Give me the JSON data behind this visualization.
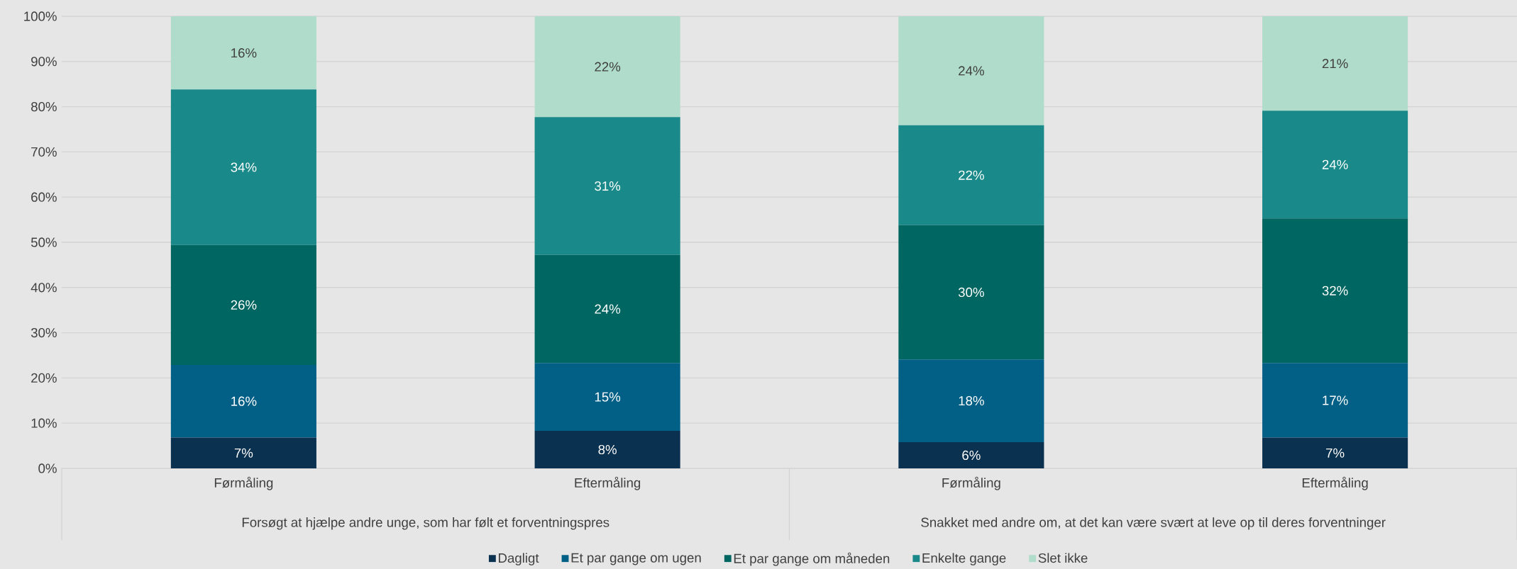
{
  "chart_data": {
    "type": "bar",
    "stacked": true,
    "categories": [
      "Førmåling",
      "Eftermåling",
      "Førmåling",
      "Eftermåling"
    ],
    "annotations": [
      "Forsøgt at hjælpe andre unge, som har følt et forventningspres",
      "Snakket med andre om, at det kan være svært at leve op til deres forventninger"
    ],
    "series": [
      {
        "name": "Dagligt",
        "color": "#0b3150",
        "values": [
          6.8,
          8.3,
          5.8,
          6.8
        ],
        "value_labels": [
          "7%",
          "8%",
          "6%",
          "7%"
        ]
      },
      {
        "name": "Et par gange om ugen",
        "color": "#025f85",
        "values": [
          16.1,
          15.0,
          18.3,
          16.5
        ],
        "value_labels": [
          "16%",
          "15%",
          "18%",
          "17%"
        ]
      },
      {
        "name": "Et par gange om måneden",
        "color": "#006661",
        "values": [
          26.5,
          23.9,
          29.7,
          32.0
        ],
        "value_labels": [
          "26%",
          "24%",
          "30%",
          "32%"
        ]
      },
      {
        "name": "Enkelte gange",
        "color": "#19898a",
        "values": [
          34.4,
          30.5,
          22.1,
          23.8
        ],
        "value_labels": [
          "34%",
          "31%",
          "22%",
          "24%"
        ]
      },
      {
        "name": "Slet ikke",
        "color": "#b0dccb",
        "values": [
          16.2,
          22.3,
          24.1,
          20.9
        ],
        "value_labels": [
          "16%",
          "22%",
          "24%",
          "21%"
        ]
      }
    ],
    "ylim": [
      0,
      100
    ],
    "yticks": [
      {
        "value": 0,
        "label": "0%"
      },
      {
        "value": 10,
        "label": "10%"
      },
      {
        "value": 20,
        "label": "20%"
      },
      {
        "value": 30,
        "label": "30%"
      },
      {
        "value": 40,
        "label": "40%"
      },
      {
        "value": 50,
        "label": "50%"
      },
      {
        "value": 60,
        "label": "60%"
      },
      {
        "value": 70,
        "label": "70%"
      },
      {
        "value": 80,
        "label": "80%"
      },
      {
        "value": 90,
        "label": "90%"
      },
      {
        "value": 100,
        "label": "100%"
      }
    ],
    "grid": "y",
    "legend": "bottom"
  }
}
